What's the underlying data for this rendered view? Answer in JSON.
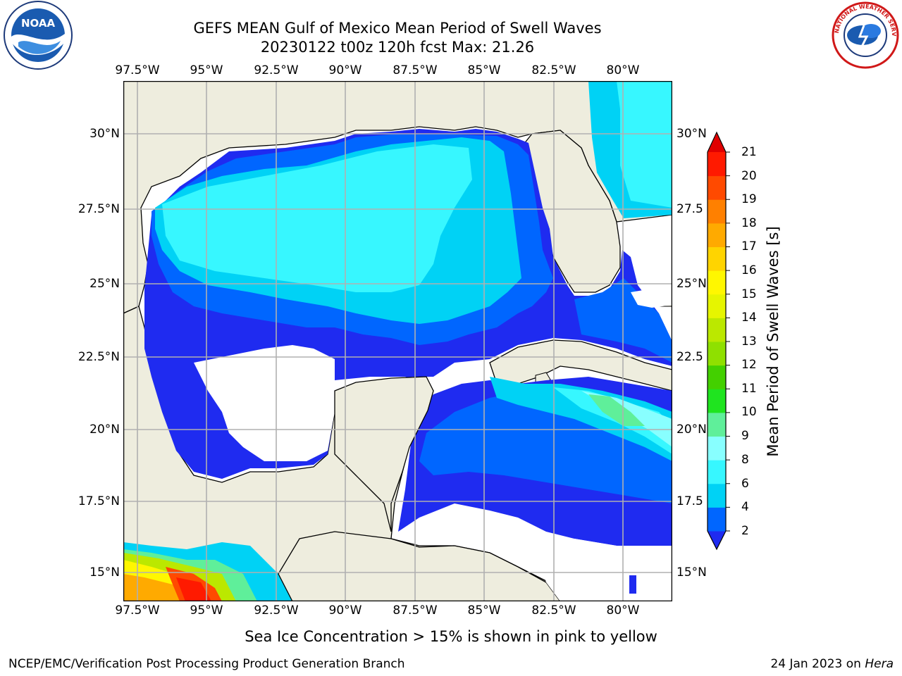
{
  "header": {
    "title": "GEFS MEAN Gulf of Mexico Mean Period of Swell Waves",
    "subtitle": "20230122 t00z 120h fcst   Max: 21.26"
  },
  "logos": {
    "noaa_text": "NOAA",
    "nws_text": "NATIONAL WEATHER SERVICE"
  },
  "map": {
    "lon_labels": [
      "97.5°W",
      "95°W",
      "92.5°W",
      "90°W",
      "87.5°W",
      "85°W",
      "82.5°W",
      "80°W"
    ],
    "lat_labels_left": [
      "30°N",
      "27.5°N",
      "25°N",
      "22.5°N",
      "20°N",
      "17.5°N",
      "15°N"
    ],
    "lat_labels_right": [
      "30°N",
      "27.5",
      "25°N",
      "22.5",
      "20°N",
      "17.5",
      "15°N"
    ],
    "extent": {
      "lon_min": -98,
      "lon_max": -78.25,
      "lat_min": 14.0,
      "lat_max": 32.0
    },
    "land_color": "#eeedde",
    "grid_color": "#b0b0b0"
  },
  "colorbar": {
    "label": "Mean Period of Swell Waves [s]",
    "ticks": [
      "2",
      "4",
      "6",
      "8",
      "9",
      "10",
      "11",
      "12",
      "13",
      "14",
      "15",
      "16",
      "17",
      "18",
      "19",
      "20",
      "21"
    ],
    "colors": [
      "#1f2bf0",
      "#0066ff",
      "#00d2f5",
      "#37f7ff",
      "#88ffff",
      "#5fef9a",
      "#1fe41f",
      "#43d000",
      "#8fe000",
      "#bbe800",
      "#e6f500",
      "#fff700",
      "#ffd400",
      "#ffaa00",
      "#ff8000",
      "#ff4a00",
      "#ff1a00",
      "#e00000"
    ]
  },
  "note": "Sea Ice Concentration > 15% is shown in pink to yellow",
  "footer": {
    "left": "NCEP/EMC/Verification Post Processing Product Generation Branch",
    "date": "24 Jan 2023 on ",
    "machine": "Hera"
  }
}
